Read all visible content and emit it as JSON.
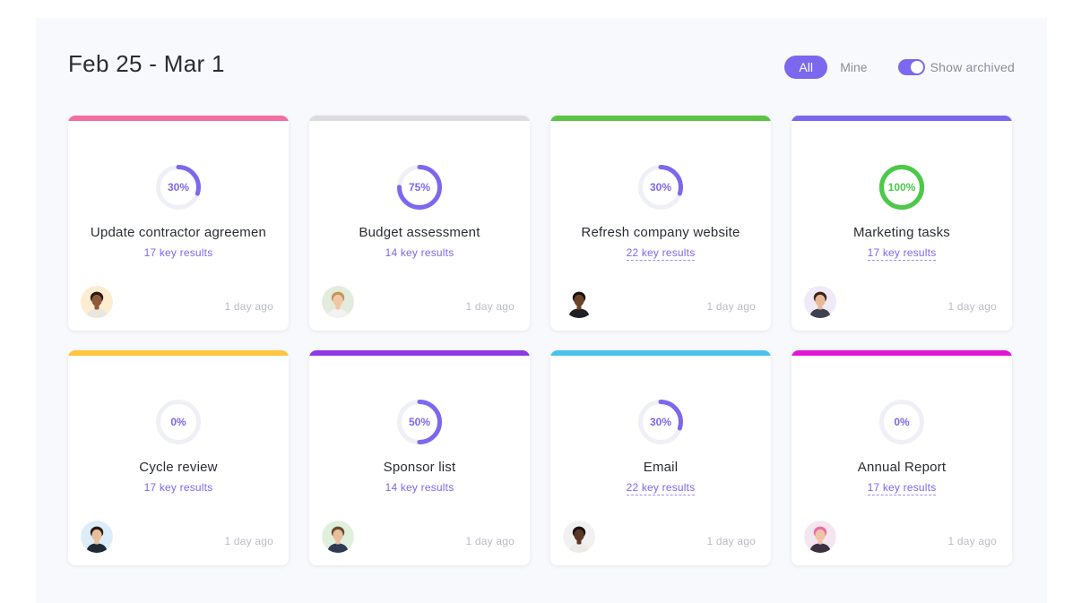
{
  "header": {
    "date_range": "Feb 25 - Mar 1",
    "filter_all": "All",
    "filter_mine": "Mine",
    "show_archived_label": "Show archived",
    "show_archived_on": true
  },
  "colors": {
    "accent": "#7b68ee",
    "complete": "#4cc94a",
    "ring_track": "#eef0f6"
  },
  "goals": [
    {
      "title": "Update contractor agreemen",
      "key_results": "17 key results",
      "progress": 30,
      "progress_label": "30%",
      "color": "#f16fa2",
      "time": "1 day ago",
      "underlined": false,
      "avatar": {
        "bg": "#fdeccf",
        "skin": "#8d5a3b",
        "hair": "#2a1a12",
        "shirt": "#e9e6e0"
      }
    },
    {
      "title": "Budget assessment",
      "key_results": "14 key results",
      "progress": 75,
      "progress_label": "75%",
      "color": "#dcdcdc",
      "time": "1 day ago",
      "underlined": false,
      "avatar": {
        "bg": "#e3ecdc",
        "skin": "#f0c7a6",
        "hair": "#c7925c",
        "shirt": "#f2f2f2"
      }
    },
    {
      "title": "Refresh company website",
      "key_results": "22 key results",
      "progress": 30,
      "progress_label": "30%",
      "color": "#5bc443",
      "time": "1 day ago",
      "underlined": true,
      "avatar": {
        "bg": "#ffffff",
        "skin": "#6b4329",
        "hair": "#161010",
        "shirt": "#1f1f24"
      }
    },
    {
      "title": "Marketing tasks",
      "key_results": "17 key results",
      "progress": 100,
      "progress_label": "100%",
      "color": "#7b68ee",
      "time": "1 day ago",
      "underlined": true,
      "avatar": {
        "bg": "#efe9f8",
        "skin": "#e6b896",
        "hair": "#3a2618",
        "shirt": "#3d4150"
      }
    },
    {
      "title": "Cycle review",
      "key_results": "17 key results",
      "progress": 0,
      "progress_label": "0%",
      "color": "#ffc53d",
      "time": "1 day ago",
      "underlined": false,
      "avatar": {
        "bg": "#dcecf8",
        "skin": "#e8bf9c",
        "hair": "#2b1a12",
        "shirt": "#1e2a36"
      }
    },
    {
      "title": "Sponsor list",
      "key_results": "14 key results",
      "progress": 50,
      "progress_label": "50%",
      "color": "#8e3ae6",
      "time": "1 day ago",
      "underlined": false,
      "avatar": {
        "bg": "#e1efdd",
        "skin": "#e7bf9e",
        "hair": "#6b4a2e",
        "shirt": "#2d3a52"
      }
    },
    {
      "title": "Email",
      "key_results": "22 key results",
      "progress": 30,
      "progress_label": "30%",
      "color": "#49c3ee",
      "time": "1 day ago",
      "underlined": true,
      "avatar": {
        "bg": "#f1f1f1",
        "skin": "#5a3825",
        "hair": "#1a1210",
        "shirt": "#ecebe8"
      }
    },
    {
      "title": "Annual Report",
      "key_results": "17 key results",
      "progress": 0,
      "progress_label": "0%",
      "color": "#e316d8",
      "time": "1 day ago",
      "underlined": true,
      "avatar": {
        "bg": "#f3e6ef",
        "skin": "#f0c3a6",
        "hair": "#ec6aa6",
        "shirt": "#3d3040"
      }
    }
  ]
}
